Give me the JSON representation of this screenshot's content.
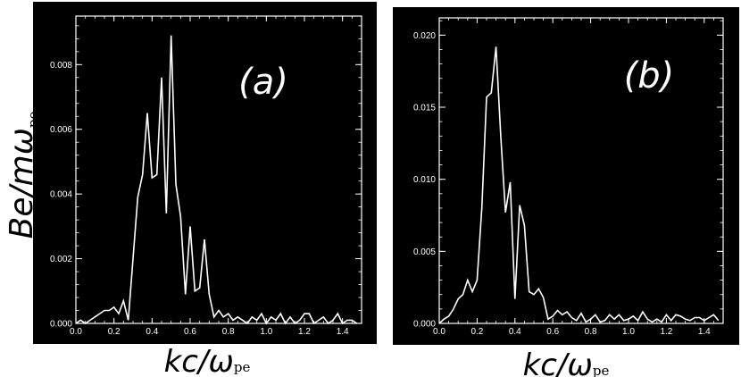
{
  "chart_data": [
    {
      "type": "line",
      "panel_label": "(a)",
      "ylabel": {
        "main": "Be/mω",
        "sub": "pe"
      },
      "xlabel": {
        "main": "kc/ω",
        "sub": "pe"
      },
      "xlim": [
        0.0,
        1.5
      ],
      "ylim": [
        0.0,
        0.0095
      ],
      "xticks": [
        "0.0",
        "0.2",
        "0.4",
        "0.6",
        "0.8",
        "1.0",
        "1.2",
        "1.4"
      ],
      "yticks": [
        "0.000",
        "0.002",
        "0.004",
        "0.006",
        "0.008"
      ],
      "grid": false,
      "x": [
        0.0,
        0.025,
        0.05,
        0.075,
        0.1,
        0.125,
        0.15,
        0.175,
        0.2,
        0.225,
        0.25,
        0.275,
        0.3,
        0.325,
        0.35,
        0.375,
        0.4,
        0.425,
        0.45,
        0.475,
        0.5,
        0.525,
        0.55,
        0.575,
        0.6,
        0.625,
        0.65,
        0.675,
        0.7,
        0.725,
        0.75,
        0.775,
        0.8,
        0.825,
        0.85,
        0.875,
        0.9,
        0.925,
        0.95,
        0.975,
        1.0,
        1.025,
        1.05,
        1.075,
        1.1,
        1.125,
        1.15,
        1.175,
        1.2,
        1.225,
        1.25,
        1.275,
        1.3,
        1.325,
        1.35,
        1.375,
        1.4,
        1.425,
        1.45,
        1.475
      ],
      "y": [
        0.0,
        0.0001,
        0.0,
        0.0001,
        0.0002,
        0.0003,
        0.0004,
        0.0004,
        0.0005,
        0.0003,
        0.0007,
        0.0001,
        0.002,
        0.0039,
        0.0046,
        0.0065,
        0.0045,
        0.0046,
        0.0076,
        0.0034,
        0.0089,
        0.0043,
        0.0033,
        0.0009,
        0.003,
        0.001,
        0.0011,
        0.0026,
        0.0009,
        0.0002,
        0.0004,
        0.0002,
        0.0003,
        0.0001,
        0.0002,
        0.0001,
        0.0,
        0.0002,
        0.0001,
        0.0003,
        0.0,
        0.0002,
        0.0001,
        0.0003,
        0.0,
        0.0002,
        0.0,
        0.0001,
        0.0003,
        0.0003,
        0.0,
        0.0001,
        0.0002,
        0.0,
        0.0001,
        0.0003,
        0.0,
        0.0001,
        0.0001,
        0.0
      ]
    },
    {
      "type": "line",
      "panel_label": "(b)",
      "xlabel": {
        "main": "kc/ω",
        "sub": "pe"
      },
      "xlim": [
        0.0,
        1.5
      ],
      "ylim": [
        0.0,
        0.0212
      ],
      "xticks": [
        "0.0",
        "0.2",
        "0.4",
        "0.6",
        "0.8",
        "1.0",
        "1.2",
        "1.4"
      ],
      "yticks": [
        "0.000",
        "0.005",
        "0.010",
        "0.015",
        "0.020"
      ],
      "grid": false,
      "x": [
        0.0,
        0.025,
        0.05,
        0.075,
        0.1,
        0.125,
        0.15,
        0.175,
        0.2,
        0.225,
        0.25,
        0.275,
        0.3,
        0.325,
        0.35,
        0.375,
        0.4,
        0.425,
        0.45,
        0.475,
        0.5,
        0.525,
        0.55,
        0.575,
        0.6,
        0.625,
        0.65,
        0.675,
        0.7,
        0.725,
        0.75,
        0.775,
        0.8,
        0.825,
        0.85,
        0.875,
        0.9,
        0.925,
        0.95,
        0.975,
        1.0,
        1.025,
        1.05,
        1.075,
        1.1,
        1.125,
        1.15,
        1.175,
        1.2,
        1.225,
        1.25,
        1.275,
        1.3,
        1.325,
        1.35,
        1.375,
        1.4,
        1.425,
        1.45,
        1.475
      ],
      "y": [
        0.0,
        0.0003,
        0.0005,
        0.001,
        0.0017,
        0.002,
        0.003,
        0.0022,
        0.003,
        0.008,
        0.0157,
        0.016,
        0.0192,
        0.013,
        0.0077,
        0.0098,
        0.0017,
        0.0082,
        0.0068,
        0.0022,
        0.002,
        0.0024,
        0.0018,
        0.0003,
        0.0005,
        0.0009,
        0.0006,
        0.0008,
        0.0004,
        0.0002,
        0.0007,
        0.0001,
        0.0003,
        0.0006,
        0.0001,
        0.0002,
        0.0006,
        0.0003,
        0.0006,
        0.0002,
        0.0003,
        0.0005,
        0.0002,
        0.0008,
        0.0003,
        0.0001,
        0.0003,
        0.0001,
        0.0006,
        0.0002,
        0.0006,
        0.0005,
        0.0003,
        0.0002,
        0.0004,
        0.0004,
        0.0002,
        0.0004,
        0.0006,
        0.0002
      ]
    }
  ]
}
